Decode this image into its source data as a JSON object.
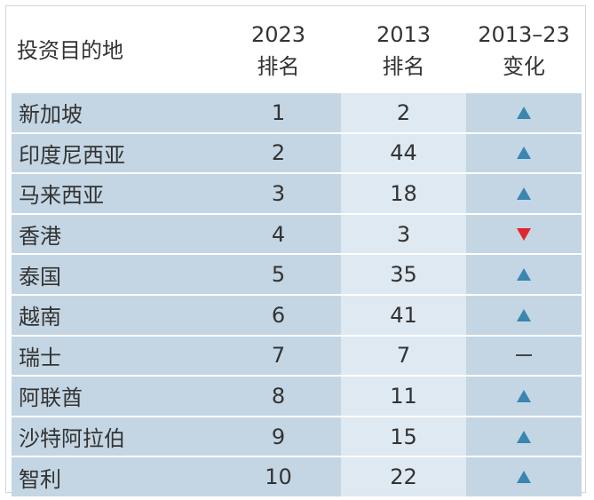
{
  "header": {
    "col0": "投资目的地",
    "col1_line1": "2023",
    "col1_line2": "排名",
    "col2_line1": "2013",
    "col2_line2": "排名",
    "col3_line1": "2013–23",
    "col3_line2": "变化"
  },
  "colors": {
    "up": "#3a86b0",
    "down": "#e0252d",
    "row_dark": "#c4d6e3",
    "row_light": "#dfe9f1"
  },
  "chart_data": {
    "type": "table",
    "columns": [
      "投资目的地",
      "2023 排名",
      "2013 排名",
      "2013–23 变化"
    ],
    "rows": [
      {
        "destination": "新加坡",
        "rank_2023": "1",
        "rank_2013": "2",
        "change": "up"
      },
      {
        "destination": "印度尼西亚",
        "rank_2023": "2",
        "rank_2013": "44",
        "change": "up"
      },
      {
        "destination": "马来西亚",
        "rank_2023": "3",
        "rank_2013": "18",
        "change": "up"
      },
      {
        "destination": "香港",
        "rank_2023": "4",
        "rank_2013": "3",
        "change": "down"
      },
      {
        "destination": "泰国",
        "rank_2023": "5",
        "rank_2013": "35",
        "change": "up"
      },
      {
        "destination": "越南",
        "rank_2023": "6",
        "rank_2013": "41",
        "change": "up"
      },
      {
        "destination": "瑞士",
        "rank_2023": "7",
        "rank_2013": "7",
        "change": "same"
      },
      {
        "destination": "阿联酋",
        "rank_2023": "8",
        "rank_2013": "11",
        "change": "up"
      },
      {
        "destination": "沙特阿拉伯",
        "rank_2023": "9",
        "rank_2013": "15",
        "change": "up"
      },
      {
        "destination": "智利",
        "rank_2023": "10",
        "rank_2013": "22",
        "change": "up"
      }
    ]
  }
}
